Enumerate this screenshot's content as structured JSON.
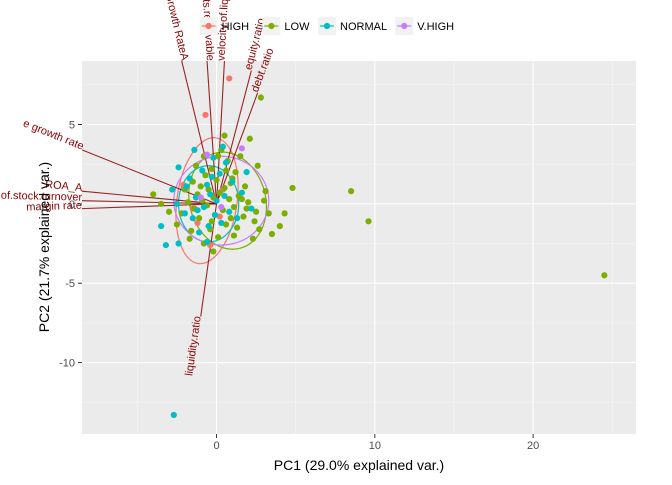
{
  "chart_data": {
    "type": "scatter",
    "subtype": "pca-biplot",
    "title": "",
    "xlabel": "PC1 (29.0% explained var.)",
    "ylabel": "PC2 (21.7% explained var.)",
    "xlim": [
      -8.5,
      26.5
    ],
    "ylim": [
      -14.5,
      9
    ],
    "x_ticks": [
      0,
      10,
      20
    ],
    "y_ticks": [
      -10,
      -5,
      0,
      5
    ],
    "x_tick_labels": [
      "0",
      "10",
      "20"
    ],
    "y_tick_labels": [
      "-10",
      "-5",
      "0",
      "5"
    ],
    "grid": true,
    "legend_position": "top",
    "legend": [
      {
        "label": "HIGH",
        "color": "#F8766D"
      },
      {
        "label": "LOW",
        "color": "#7CAE00"
      },
      {
        "label": "NORMAL",
        "color": "#00BFC4"
      },
      {
        "label": "V.HIGH",
        "color": "#C77CFF"
      }
    ],
    "series": [
      {
        "name": "HIGH",
        "color": "#F8766D",
        "points": [
          [
            0.8,
            7.9
          ],
          [
            -0.7,
            5.6
          ],
          [
            -2.1,
            1.2
          ],
          [
            0.4,
            0.9
          ],
          [
            -1.5,
            -0.3
          ],
          [
            0.2,
            -0.8
          ],
          [
            -0.4,
            -2.6
          ],
          [
            -1.2,
            -1.2
          ]
        ]
      },
      {
        "name": "LOW",
        "color": "#7CAE00",
        "points": [
          [
            24.5,
            -4.5
          ],
          [
            9.6,
            -1.1
          ],
          [
            8.5,
            0.8
          ],
          [
            4.8,
            1.0
          ],
          [
            4.3,
            -0.6
          ],
          [
            4.0,
            -1.4
          ],
          [
            3.5,
            -1.9
          ],
          [
            3.3,
            -0.6
          ],
          [
            3.1,
            0.8
          ],
          [
            3.0,
            0.2
          ],
          [
            2.8,
            6.7
          ],
          [
            2.6,
            2.4
          ],
          [
            2.5,
            -0.5
          ],
          [
            2.4,
            -1.1
          ],
          [
            2.3,
            -2.2
          ],
          [
            2.1,
            4.1
          ],
          [
            2.0,
            0.1
          ],
          [
            1.9,
            -0.3
          ],
          [
            1.8,
            1.1
          ],
          [
            1.7,
            -0.8
          ],
          [
            1.5,
            3.0
          ],
          [
            1.4,
            0.5
          ],
          [
            1.3,
            -1.5
          ],
          [
            1.2,
            2.0
          ],
          [
            1.1,
            -0.2
          ],
          [
            1.0,
            1.6
          ],
          [
            0.9,
            -0.9
          ],
          [
            0.8,
            0.3
          ],
          [
            0.7,
            2.7
          ],
          [
            0.6,
            -1.3
          ],
          [
            0.5,
            1.0
          ],
          [
            0.4,
            -0.4
          ],
          [
            0.3,
            3.4
          ],
          [
            0.2,
            0.7
          ],
          [
            0.1,
            -2.1
          ],
          [
            0.0,
            1.5
          ],
          [
            -0.1,
            -0.7
          ],
          [
            -0.2,
            0.4
          ],
          [
            -0.3,
            2.2
          ],
          [
            -0.4,
            -1.6
          ],
          [
            -0.5,
            0.9
          ],
          [
            -0.6,
            -0.1
          ],
          [
            -0.7,
            1.8
          ],
          [
            -0.8,
            -2.5
          ],
          [
            -0.9,
            0.2
          ],
          [
            -1.0,
            1.1
          ],
          [
            -1.1,
            -0.9
          ],
          [
            -1.2,
            0.6
          ],
          [
            -1.3,
            2.4
          ],
          [
            -1.4,
            -0.3
          ],
          [
            -1.5,
            1.4
          ],
          [
            -1.6,
            -1.7
          ],
          [
            -1.8,
            0.1
          ],
          [
            -2.0,
            0.9
          ],
          [
            -2.2,
            -0.6
          ],
          [
            -2.5,
            -1.3
          ],
          [
            -3.0,
            -0.5
          ],
          [
            -3.5,
            0.0
          ],
          [
            -4.0,
            0.6
          ],
          [
            0.1,
            3.0
          ],
          [
            0.6,
            2.1
          ],
          [
            1.6,
            0.3
          ],
          [
            -0.3,
            -1.1
          ],
          [
            0.9,
            1.3
          ],
          [
            -0.8,
            3.0
          ],
          [
            -0.2,
            -3.0
          ],
          [
            1.1,
            -2.0
          ],
          [
            2.7,
            -1.6
          ],
          [
            0.5,
            4.3
          ],
          [
            -1.7,
            -2.2
          ]
        ]
      },
      {
        "name": "NORMAL",
        "color": "#00BFC4",
        "points": [
          [
            -2.7,
            -13.3
          ],
          [
            -3.2,
            -2.6
          ],
          [
            -2.4,
            -2.5
          ],
          [
            -3.5,
            -1.4
          ],
          [
            -2.8,
            0.9
          ],
          [
            -2.4,
            2.3
          ],
          [
            -2.0,
            -0.6
          ],
          [
            -1.7,
            1.6
          ],
          [
            -1.5,
            -0.9
          ],
          [
            -1.4,
            3.4
          ],
          [
            -1.3,
            0.4
          ],
          [
            -1.1,
            -1.8
          ],
          [
            -0.9,
            2.1
          ],
          [
            -0.8,
            -0.2
          ],
          [
            -0.6,
            1.2
          ],
          [
            -0.5,
            -1.4
          ],
          [
            -0.4,
            0.6
          ],
          [
            -0.2,
            2.9
          ],
          [
            -0.1,
            -0.7
          ],
          [
            0.0,
            0.2
          ],
          [
            0.2,
            1.9
          ],
          [
            0.3,
            -1.2
          ],
          [
            0.5,
            0.5
          ],
          [
            0.6,
            2.6
          ],
          [
            0.8,
            -0.5
          ],
          [
            1.0,
            1.4
          ],
          [
            1.3,
            -0.9
          ],
          [
            1.6,
            0.7
          ],
          [
            1.9,
            2.0
          ],
          [
            2.2,
            -0.3
          ],
          [
            -0.6,
            -2.4
          ],
          [
            -1.9,
            1.1
          ],
          [
            0.4,
            3.6
          ],
          [
            -0.3,
            1.7
          ],
          [
            -1.2,
            -0.4
          ],
          [
            -2.5,
            0.0
          ]
        ]
      },
      {
        "name": "V.HIGH",
        "color": "#C77CFF",
        "points": [
          [
            -0.6,
            3.1
          ],
          [
            1.6,
            3.5
          ],
          [
            0.3,
            -0.2
          ],
          [
            -1.0,
            0.4
          ]
        ]
      }
    ],
    "ellipses": [
      {
        "group": "HIGH",
        "cx": -0.6,
        "cy": 0.2,
        "rx": 1.9,
        "ry": 4.0,
        "angle": 8
      },
      {
        "group": "LOW",
        "cx": 0.7,
        "cy": 0.2,
        "rx": 2.4,
        "ry": 3.1,
        "angle": -15
      },
      {
        "group": "NORMAL",
        "cx": -0.5,
        "cy": 0.0,
        "rx": 1.9,
        "ry": 2.4,
        "angle": 0
      },
      {
        "group": "V.HIGH",
        "cx": 0.3,
        "cy": 0.2,
        "rx": 3.0,
        "ry": 2.8,
        "angle": 0
      }
    ],
    "arrows": [
      {
        "label": "sets Growth RateA",
        "x": -2.2,
        "y": 9.0
      },
      {
        "label": "accounts.receivable",
        "x": -0.6,
        "y": 9.0
      },
      {
        "label": "velocity.of.liqu",
        "x": 0.5,
        "y": 9.0
      },
      {
        "label": "equity.ratio",
        "x": 2.2,
        "y": 8.4
      },
      {
        "label": "debt.ratio",
        "x": 2.6,
        "y": 7.0
      },
      {
        "label": "e growth rate",
        "x": -8.5,
        "y": 3.4
      },
      {
        "label": "ROA_A",
        "x": -8.5,
        "y": 0.8
      },
      {
        "label": "e.of.stock.turnover",
        "x": -8.5,
        "y": 0.2
      },
      {
        "label": "margin rate",
        "x": -8.5,
        "y": -0.3
      },
      {
        "label": "liquidity.ratio",
        "x": -1.0,
        "y": -7.1
      }
    ]
  }
}
